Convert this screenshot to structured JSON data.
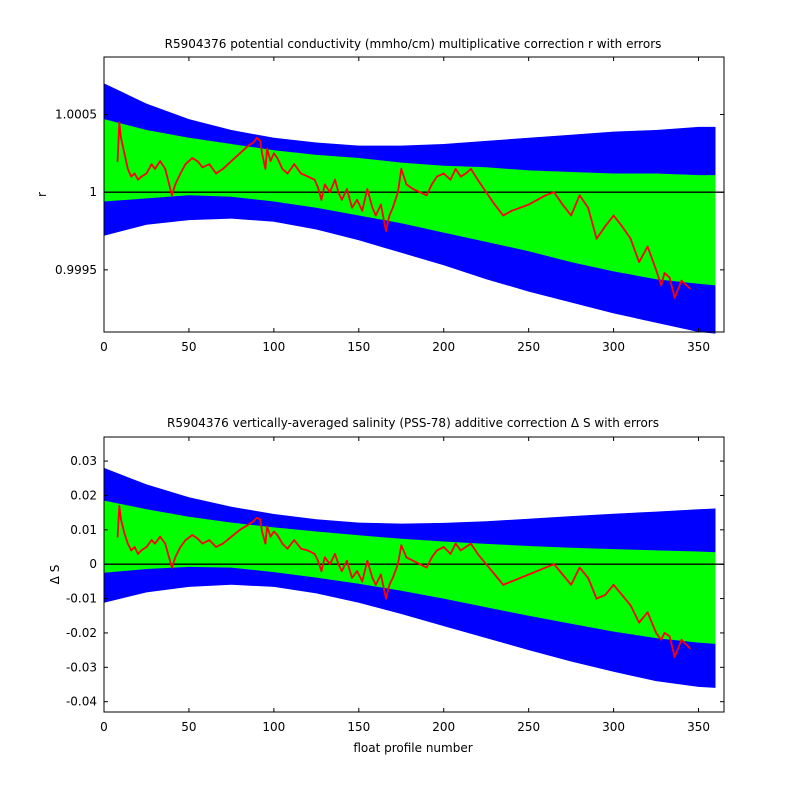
{
  "chart_data": [
    {
      "type": "line",
      "title": "R5904376 potential conductivity (mmho/cm) multiplicative correction r with errors",
      "xlabel": "",
      "ylabel": "r",
      "xlim": [
        0,
        365
      ],
      "ylim": [
        0.9991,
        1.00087
      ],
      "xticks": [
        0,
        50,
        100,
        150,
        200,
        250,
        300,
        350
      ],
      "yticks": [
        0.9995,
        1,
        1.0005
      ],
      "ytick_labels": [
        "0.9995",
        "1",
        "1.0005"
      ],
      "reference_line": 1,
      "colors": {
        "outer_band": "#0000ff",
        "inner_band": "#00ff00",
        "series": "#ff0000",
        "reference": "#000000"
      },
      "band_x": [
        0,
        25,
        50,
        75,
        100,
        125,
        150,
        175,
        200,
        225,
        250,
        275,
        300,
        325,
        350,
        360
      ],
      "outer_upper": [
        1.0007,
        1.00057,
        1.00047,
        1.0004,
        1.00035,
        1.00032,
        1.0003,
        1.0003,
        1.00031,
        1.00033,
        1.00035,
        1.00037,
        1.00039,
        1.0004,
        1.00042,
        1.00042
      ],
      "outer_lower": [
        0.99972,
        0.99979,
        0.99982,
        0.99983,
        0.99981,
        0.99976,
        0.99969,
        0.99961,
        0.99953,
        0.99944,
        0.99936,
        0.99929,
        0.99922,
        0.99916,
        0.9991,
        0.99909
      ],
      "inner_upper": [
        1.00047,
        1.0004,
        1.00035,
        1.00031,
        1.00027,
        1.00024,
        1.00022,
        1.00019,
        1.00017,
        1.00016,
        1.00014,
        1.00013,
        1.00012,
        1.00012,
        1.00011,
        1.00011
      ],
      "inner_lower": [
        0.99994,
        0.99996,
        0.99998,
        0.99997,
        0.99994,
        0.9999,
        0.99985,
        0.9998,
        0.99974,
        0.99968,
        0.99962,
        0.99955,
        0.99949,
        0.99944,
        0.99941,
        0.9994
      ],
      "series_x": [
        8,
        9,
        10,
        12,
        14,
        16,
        18,
        20,
        22,
        25,
        28,
        30,
        33,
        36,
        40,
        42,
        45,
        48,
        52,
        55,
        58,
        62,
        66,
        70,
        75,
        80,
        85,
        88,
        90,
        92,
        93,
        95,
        96,
        98,
        100,
        102,
        105,
        108,
        112,
        116,
        120,
        124,
        126,
        128,
        130,
        133,
        136,
        138,
        140,
        143,
        146,
        149,
        152,
        155,
        158,
        160,
        163,
        166,
        168,
        170,
        173,
        175,
        178,
        182,
        186,
        190,
        193,
        196,
        200,
        204,
        207,
        210,
        213,
        216,
        220,
        225,
        230,
        235,
        240,
        245,
        250,
        255,
        260,
        265,
        270,
        275,
        280,
        285,
        290,
        295,
        300,
        305,
        310,
        315,
        320,
        325,
        328,
        330,
        333,
        336,
        340,
        345
      ],
      "series_y": [
        1.0002,
        1.00045,
        1.00035,
        1.00025,
        1.00015,
        1.0001,
        1.00012,
        1.00008,
        1.0001,
        1.00012,
        1.00018,
        1.00015,
        1.0002,
        1.00015,
        0.99998,
        1.00005,
        1.00012,
        1.00018,
        1.00022,
        1.0002,
        1.00016,
        1.00018,
        1.00012,
        1.00015,
        1.0002,
        1.00025,
        1.0003,
        1.00032,
        1.00035,
        1.00033,
        1.00025,
        1.00015,
        1.00028,
        1.0002,
        1.00025,
        1.00022,
        1.00015,
        1.00012,
        1.00018,
        1.00012,
        1.0001,
        1.00008,
        1.00003,
        0.99995,
        1.00005,
        1.0,
        1.00008,
        1.0,
        0.99995,
        1.00002,
        0.9999,
        0.99995,
        0.99988,
        1.00002,
        0.9999,
        0.99985,
        0.99992,
        0.99975,
        0.99985,
        0.9999,
        1.0,
        1.00015,
        1.00005,
        1.00002,
        1.0,
        0.99998,
        1.00005,
        1.0001,
        1.00012,
        1.00008,
        1.00015,
        1.0001,
        1.00012,
        1.00015,
        1.00008,
        1.0,
        0.99992,
        0.99985,
        0.99988,
        0.9999,
        0.99992,
        0.99995,
        0.99998,
        1.0,
        0.99992,
        0.99985,
        0.99998,
        0.9999,
        0.9997,
        0.99978,
        0.99985,
        0.99978,
        0.9997,
        0.99955,
        0.99965,
        0.9995,
        0.9994,
        0.99948,
        0.99945,
        0.99932,
        0.99943,
        0.99938
      ]
    },
    {
      "type": "line",
      "title": "R5904376 vertically-averaged salinity (PSS-78) additive correction Δ S with errors",
      "xlabel": "float profile number",
      "ylabel": "Δ S",
      "xlim": [
        0,
        365
      ],
      "ylim": [
        -0.043,
        0.037
      ],
      "xticks": [
        0,
        50,
        100,
        150,
        200,
        250,
        300,
        350
      ],
      "yticks": [
        -0.04,
        -0.03,
        -0.02,
        -0.01,
        0,
        0.01,
        0.02,
        0.03
      ],
      "ytick_labels": [
        "-0.04",
        "-0.03",
        "-0.02",
        "-0.01",
        "0",
        "0.01",
        "0.02",
        "0.03"
      ],
      "reference_line": 0,
      "colors": {
        "outer_band": "#0000ff",
        "inner_band": "#00ff00",
        "series": "#ff0000",
        "reference": "#000000"
      },
      "band_x": [
        0,
        25,
        50,
        75,
        100,
        125,
        150,
        175,
        200,
        225,
        250,
        275,
        300,
        325,
        350,
        360
      ],
      "outer_upper": [
        0.028,
        0.0232,
        0.0195,
        0.0167,
        0.0146,
        0.0131,
        0.0121,
        0.0118,
        0.012,
        0.0125,
        0.0132,
        0.014,
        0.0147,
        0.0153,
        0.016,
        0.0162
      ],
      "outer_lower": [
        -0.0112,
        -0.0082,
        -0.0066,
        -0.006,
        -0.0066,
        -0.0085,
        -0.0112,
        -0.0145,
        -0.018,
        -0.0215,
        -0.025,
        -0.0283,
        -0.0313,
        -0.034,
        -0.0357,
        -0.036
      ],
      "inner_upper": [
        0.0185,
        0.016,
        0.0138,
        0.0121,
        0.0107,
        0.0095,
        0.0084,
        0.0074,
        0.0066,
        0.0059,
        0.0053,
        0.0048,
        0.0044,
        0.004,
        0.0037,
        0.0035
      ],
      "inner_lower": [
        -0.0025,
        -0.0014,
        -0.0008,
        -0.001,
        -0.0023,
        -0.0039,
        -0.0057,
        -0.0077,
        -0.01,
        -0.0125,
        -0.015,
        -0.0173,
        -0.0196,
        -0.0215,
        -0.0228,
        -0.0232
      ],
      "series_x": [
        8,
        9,
        10,
        12,
        14,
        16,
        18,
        20,
        22,
        25,
        28,
        30,
        33,
        36,
        40,
        42,
        45,
        48,
        52,
        55,
        58,
        62,
        66,
        70,
        75,
        80,
        85,
        88,
        90,
        92,
        93,
        95,
        96,
        98,
        100,
        102,
        105,
        108,
        112,
        116,
        120,
        124,
        126,
        128,
        130,
        133,
        136,
        138,
        140,
        143,
        146,
        149,
        152,
        155,
        158,
        160,
        163,
        166,
        168,
        170,
        173,
        175,
        178,
        182,
        186,
        190,
        193,
        196,
        200,
        204,
        207,
        210,
        213,
        216,
        220,
        225,
        230,
        235,
        240,
        245,
        250,
        255,
        260,
        265,
        270,
        275,
        280,
        285,
        290,
        295,
        300,
        305,
        310,
        315,
        320,
        325,
        328,
        330,
        333,
        336,
        340,
        345
      ],
      "series_y": [
        0.008,
        0.017,
        0.013,
        0.009,
        0.006,
        0.004,
        0.005,
        0.003,
        0.004,
        0.005,
        0.007,
        0.006,
        0.008,
        0.006,
        -0.001,
        0.002,
        0.005,
        0.007,
        0.0085,
        0.0075,
        0.006,
        0.007,
        0.005,
        0.006,
        0.008,
        0.01,
        0.0115,
        0.0125,
        0.0135,
        0.013,
        0.0095,
        0.006,
        0.011,
        0.008,
        0.0095,
        0.0085,
        0.006,
        0.0045,
        0.007,
        0.0045,
        0.004,
        0.003,
        0.001,
        -0.002,
        0.002,
        0.0,
        0.003,
        0.0,
        -0.002,
        0.001,
        -0.004,
        -0.002,
        -0.005,
        0.001,
        -0.004,
        -0.006,
        -0.003,
        -0.01,
        -0.006,
        -0.004,
        0.0,
        0.0055,
        0.002,
        0.001,
        0.0,
        -0.001,
        0.002,
        0.004,
        0.005,
        0.003,
        0.006,
        0.004,
        0.005,
        0.006,
        0.003,
        0.0,
        -0.003,
        -0.006,
        -0.005,
        -0.004,
        -0.003,
        -0.002,
        -0.001,
        0.0,
        -0.003,
        -0.006,
        -0.001,
        -0.004,
        -0.01,
        -0.009,
        -0.006,
        -0.009,
        -0.012,
        -0.017,
        -0.014,
        -0.02,
        -0.022,
        -0.02,
        -0.021,
        -0.027,
        -0.022,
        -0.0245
      ]
    }
  ]
}
